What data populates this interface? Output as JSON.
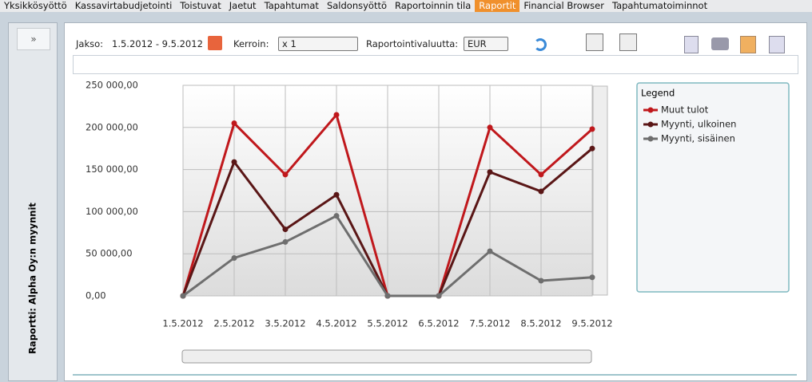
{
  "menu": {
    "items": [
      "Yksikkösyöttö",
      "Kassavirtabudjetointi",
      "Toistuvat",
      "Jaetut",
      "Tapahtumat",
      "Saldonsyöttö",
      "Raportoinnin tila",
      "Raportit",
      "Financial Browser",
      "Tapahtumatoiminnot"
    ],
    "active": 7
  },
  "sidebar": {
    "toggle": "»",
    "title": "Raportti: Alpha Oy:n myynnit"
  },
  "toolbar": {
    "period_label": "Jakso:",
    "period": "1.5.2012 - 9.5.2012",
    "factor_label": "Kerroin:",
    "factor": "x 1",
    "currency_label": "Raportointivaluutta:",
    "currency": "EUR"
  },
  "chart_data": {
    "type": "line",
    "legend_title": "Legend",
    "legend": "right",
    "categories": [
      "1.5.2012",
      "2.5.2012",
      "3.5.2012",
      "4.5.2012",
      "5.5.2012",
      "6.5.2012",
      "7.5.2012",
      "8.5.2012",
      "9.5.2012"
    ],
    "ylim": [
      0,
      250000
    ],
    "yticks": [
      {
        "value": 0,
        "label": "0,00"
      },
      {
        "value": 50000,
        "label": "50 000,00"
      },
      {
        "value": 100000,
        "label": "100 000,00"
      },
      {
        "value": 150000,
        "label": "150 000,00"
      },
      {
        "value": 200000,
        "label": "200 000,00"
      },
      {
        "value": 250000,
        "label": "250 000,00"
      }
    ],
    "grid": true,
    "series": [
      {
        "name": "Muut tulot",
        "color": "#c0181c",
        "values": [
          0,
          205000,
          144000,
          215000,
          0,
          0,
          200000,
          144000,
          198000
        ]
      },
      {
        "name": "Myynti, ulkoinen",
        "color": "#5a1616",
        "values": [
          0,
          159000,
          79000,
          120000,
          0,
          0,
          147000,
          124000,
          175000
        ]
      },
      {
        "name": "Myynti, sisäinen",
        "color": "#6e6e6e",
        "values": [
          0,
          45000,
          64000,
          95000,
          0,
          0,
          53000,
          18000,
          22000
        ]
      }
    ]
  }
}
